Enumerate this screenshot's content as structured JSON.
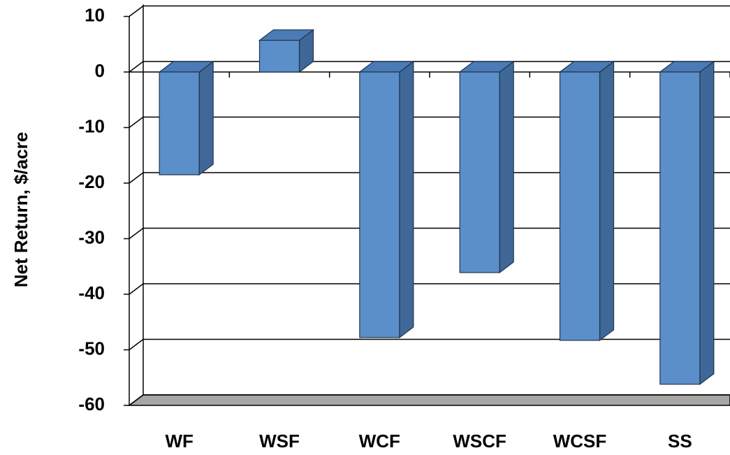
{
  "chart_data": {
    "type": "bar",
    "y_label": "Net Return, $/acre",
    "categories": [
      "WF",
      "WSF",
      "WCF",
      "WSCF",
      "WCSF",
      "SS"
    ],
    "values": [
      -18.5,
      5.7,
      -47.8,
      -36.1,
      -48.3,
      -56.2
    ],
    "color": "#5b8fc9",
    "ylim": [
      -60,
      10
    ],
    "yticks": [
      -60,
      -50,
      -40,
      -30,
      -20,
      -10,
      0,
      10
    ],
    "grid": true
  }
}
